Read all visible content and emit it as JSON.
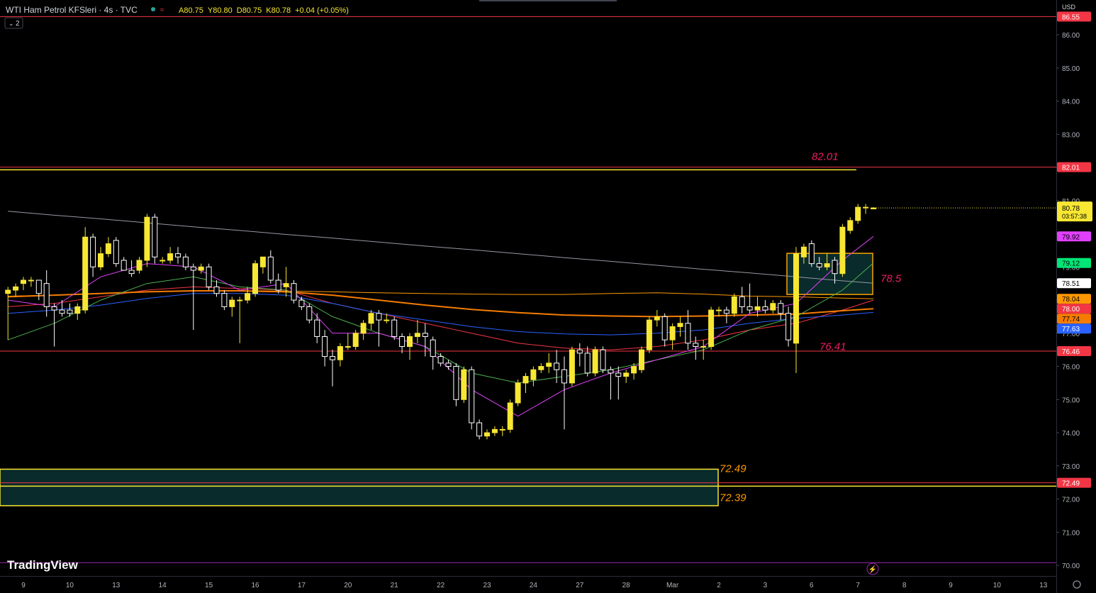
{
  "chart_data": {
    "type": "candlestick",
    "title": "WTI Ham Petrol KFSleri · 4s · TVC",
    "legend_values": [
      "A80.75",
      "Y80.80",
      "D80.75",
      "K80.78",
      "+0.04 (+0.05%)"
    ],
    "indicator_count": "2",
    "currency": "USD",
    "brand": "TradingView",
    "countdown": "03:57:38",
    "up_color": "#f7e733",
    "down_color": "#ffffff",
    "categories": [
      null,
      null,
      null,
      "9",
      null,
      null,
      null,
      null,
      null,
      "10",
      null,
      null,
      null,
      null,
      null,
      "13",
      null,
      null,
      null,
      null,
      null,
      "14",
      null,
      null,
      null,
      null,
      null,
      "15",
      null,
      null,
      null,
      null,
      null,
      "16",
      null,
      null,
      null,
      null,
      null,
      "17",
      null,
      null,
      null,
      null,
      null,
      "20",
      null,
      null,
      null,
      null,
      null,
      "21",
      null,
      null,
      null,
      null,
      null,
      "22",
      null,
      null,
      null,
      null,
      null,
      "23",
      null,
      null,
      null,
      null,
      null,
      "24",
      null,
      null,
      null,
      null,
      null,
      "27",
      null,
      null,
      null,
      null,
      null,
      "28",
      null,
      null,
      null,
      null,
      null,
      "Mar",
      null,
      null,
      null,
      null,
      null,
      "2",
      null,
      null,
      null,
      null,
      null,
      "3",
      null,
      null,
      null,
      null,
      null,
      "6",
      null,
      null,
      null,
      null,
      null,
      "7",
      null,
      null,
      null,
      null,
      null,
      "8",
      null,
      null,
      null,
      null,
      null,
      "9",
      null,
      null,
      null,
      null,
      null,
      "10",
      null,
      null,
      null,
      null,
      null,
      "13"
    ],
    "open": [
      null,
      78.2,
      78.3,
      78.5,
      78.6,
      78.6,
      78.5,
      77.8,
      77.7,
      77.7,
      77.6,
      77.7,
      79.9,
      79.0,
      79.4,
      79.8,
      79.2,
      78.9,
      78.9,
      79.2,
      80.5,
      79.2,
      79.2,
      79.4,
      79.3,
      79.0,
      78.9,
      79.0,
      78.4,
      78.2,
      77.8,
      78.0,
      78.0,
      78.2,
      79.0,
      79.3,
      78.6,
      78.4,
      78.5,
      78.0,
      77.8,
      77.4,
      76.9,
      76.3,
      76.2,
      76.6,
      76.6,
      77.0,
      77.3,
      77.6,
      77.4,
      77.4,
      76.9,
      76.6,
      76.9,
      77.0,
      76.8,
      76.3,
      76.1,
      76.0,
      75.0,
      75.9,
      74.3,
      73.9,
      74.0,
      74.1,
      74.1,
      74.9,
      75.5,
      75.6,
      75.9,
      76.0,
      76.1,
      75.9,
      75.5,
      76.5,
      76.4,
      75.8,
      76.5,
      75.9,
      75.8,
      75.7,
      75.8,
      75.9,
      76.5,
      77.4,
      77.5,
      76.8,
      77.2,
      77.3,
      76.7,
      76.6,
      76.6,
      77.7,
      77.7,
      77.6,
      78.1,
      77.8,
      77.7,
      77.8,
      77.7,
      77.9,
      77.6,
      76.7,
      79.3,
      79.7,
      79.1,
      79.0,
      79.2,
      78.8,
      80.1,
      80.4,
      80.8,
      80.75,
      null,
      null,
      null,
      null,
      null,
      null,
      null,
      null,
      null,
      null,
      null,
      null,
      null,
      null,
      null,
      null,
      null,
      null,
      null,
      null,
      null,
      null
    ],
    "high": [
      null,
      78.4,
      78.5,
      78.7,
      78.7,
      78.6,
      78.9,
      77.9,
      78.0,
      77.9,
      77.9,
      80.2,
      80.0,
      79.6,
      79.9,
      79.9,
      79.3,
      79.2,
      79.3,
      80.6,
      80.6,
      79.3,
      79.6,
      79.6,
      79.4,
      79.1,
      79.1,
      79.1,
      78.6,
      78.3,
      78.1,
      78.1,
      78.4,
      79.2,
      79.3,
      79.5,
      78.8,
      79.0,
      78.6,
      78.1,
      77.9,
      77.6,
      77.1,
      76.5,
      76.7,
      77.0,
      77.1,
      77.4,
      77.7,
      77.7,
      77.6,
      77.5,
      77.0,
      77.0,
      77.4,
      77.3,
      76.9,
      76.4,
      76.2,
      76.1,
      76.0,
      76.0,
      74.4,
      74.1,
      74.2,
      74.2,
      75.0,
      75.6,
      75.8,
      76.0,
      76.1,
      76.4,
      76.5,
      76.3,
      76.6,
      76.7,
      76.6,
      76.6,
      76.6,
      76.0,
      76.0,
      75.9,
      76.1,
      76.6,
      77.5,
      77.7,
      77.6,
      77.3,
      77.5,
      77.7,
      76.9,
      76.8,
      77.8,
      77.8,
      77.8,
      78.2,
      78.4,
      78.5,
      78.1,
      78.0,
      78.0,
      78.0,
      77.8,
      79.6,
      79.7,
      79.8,
      79.3,
      79.4,
      79.3,
      80.3,
      80.5,
      80.9,
      80.9,
      80.8,
      null,
      null,
      null,
      null,
      null,
      null,
      null,
      null,
      null,
      null,
      null,
      null,
      null,
      null,
      null,
      null,
      null,
      null,
      null,
      null,
      null,
      null
    ],
    "low": [
      null,
      76.8,
      78.1,
      78.3,
      78.4,
      78.0,
      77.5,
      76.6,
      77.5,
      77.5,
      77.4,
      77.6,
      78.7,
      78.9,
      79.3,
      79.0,
      78.9,
      78.7,
      78.8,
      79.0,
      79.1,
      79.1,
      79.1,
      79.1,
      78.9,
      77.1,
      78.8,
      78.3,
      78.1,
      77.7,
      77.5,
      76.7,
      77.9,
      78.1,
      78.8,
      78.5,
      78.2,
      78.1,
      77.9,
      77.7,
      77.3,
      76.7,
      76.0,
      75.4,
      76.0,
      76.5,
      76.5,
      76.8,
      77.1,
      76.6,
      77.3,
      76.8,
      76.4,
      76.2,
      76.7,
      76.3,
      75.9,
      76.0,
      75.9,
      74.8,
      74.9,
      74.1,
      73.8,
      73.8,
      73.9,
      73.9,
      74.0,
      74.8,
      75.2,
      75.4,
      75.8,
      75.8,
      75.5,
      74.1,
      75.4,
      76.0,
      75.7,
      75.7,
      75.8,
      75.0,
      75.0,
      75.5,
      75.6,
      75.8,
      76.4,
      77.2,
      76.6,
      76.5,
      76.9,
      76.5,
      76.2,
      76.2,
      76.5,
      77.5,
      77.3,
      77.5,
      77.6,
      77.6,
      77.5,
      77.6,
      77.6,
      77.4,
      76.6,
      75.8,
      79.1,
      79.0,
      78.9,
      78.9,
      78.5,
      78.7,
      80.0,
      80.3,
      80.6,
      80.75,
      null,
      null,
      null,
      null,
      null,
      null,
      null,
      null,
      null,
      null,
      null,
      null,
      null,
      null,
      null,
      null,
      null,
      null,
      null,
      null,
      null,
      null
    ],
    "close": [
      null,
      78.3,
      78.4,
      78.6,
      78.6,
      78.2,
      77.8,
      77.7,
      77.6,
      77.6,
      77.8,
      79.9,
      79.0,
      79.4,
      79.7,
      79.1,
      78.9,
      78.8,
      79.2,
      80.5,
      79.3,
      79.2,
      79.4,
      79.3,
      79.0,
      78.9,
      79.0,
      78.4,
      78.2,
      77.8,
      78.0,
      78.0,
      78.2,
      79.1,
      79.3,
      78.6,
      78.3,
      78.5,
      78.0,
      77.8,
      77.4,
      76.9,
      76.3,
      76.2,
      76.6,
      76.6,
      77.0,
      77.3,
      77.6,
      77.4,
      77.4,
      76.9,
      76.6,
      76.9,
      77.0,
      76.9,
      76.3,
      76.1,
      76.0,
      75.0,
      75.9,
      74.3,
      73.9,
      74.0,
      74.1,
      74.1,
      74.9,
      75.5,
      75.7,
      75.9,
      76.0,
      76.1,
      75.9,
      75.5,
      76.5,
      76.4,
      75.8,
      76.5,
      75.9,
      75.8,
      75.7,
      75.8,
      76.0,
      76.5,
      77.4,
      77.5,
      76.8,
      77.2,
      77.3,
      76.7,
      76.6,
      76.6,
      77.7,
      77.7,
      77.6,
      78.1,
      77.8,
      77.7,
      77.8,
      77.7,
      77.9,
      77.6,
      76.8,
      79.4,
      79.6,
      79.1,
      79.0,
      79.1,
      78.8,
      80.2,
      80.4,
      80.8,
      80.8,
      80.78,
      null,
      null,
      null,
      null,
      null,
      null,
      null,
      null,
      null,
      null,
      null,
      null,
      null,
      null,
      null,
      null,
      null,
      null,
      null,
      null,
      null,
      null
    ],
    "ylim": [
      69.68,
      87.05
    ],
    "yticks": [
      {
        "value": 70,
        "label": "70.00"
      },
      {
        "value": 71,
        "label": "71.00"
      },
      {
        "value": 72,
        "label": "72.00"
      },
      {
        "value": 73,
        "label": "73.00"
      },
      {
        "value": 74,
        "label": "74.00"
      },
      {
        "value": 75,
        "label": "75.00"
      },
      {
        "value": 76,
        "label": "76.00"
      },
      {
        "value": 77,
        "label": "77.00"
      },
      {
        "value": 78,
        "label": "78.00"
      },
      {
        "value": 79,
        "label": "79.00"
      },
      {
        "value": 80,
        "label": "80.00"
      },
      {
        "value": 81,
        "label": "81.00"
      },
      {
        "value": 82,
        "label": "82.00"
      },
      {
        "value": 83,
        "label": "83.00"
      },
      {
        "value": 84,
        "label": "84.00"
      },
      {
        "value": 85,
        "label": "85.00"
      },
      {
        "value": 86,
        "label": "86.00"
      }
    ],
    "indicators": [
      {
        "color": "#9598a1",
        "width": 1,
        "pill_bg": "#ffffff",
        "pill_fg": "#000000",
        "x": [
          1,
          7,
          13,
          19,
          25,
          31,
          37,
          43,
          49,
          55,
          61,
          67,
          73,
          79,
          85,
          91,
          97,
          103,
          109,
          113
        ],
        "values": [
          80.68,
          80.56,
          80.45,
          80.33,
          80.21,
          80.1,
          79.98,
          79.87,
          79.75,
          79.63,
          79.52,
          79.4,
          79.28,
          79.17,
          79.05,
          78.93,
          78.82,
          78.7,
          78.58,
          78.51
        ]
      },
      {
        "color": "#ff9800",
        "width": 1,
        "pill_bg": "#ff9800",
        "pill_fg": "#000000",
        "x": [
          1,
          7,
          13,
          19,
          25,
          31,
          37,
          43,
          49,
          55,
          61,
          67,
          73,
          79,
          85,
          91,
          97,
          103,
          109,
          113
        ],
        "values": [
          78.12,
          78.15,
          78.2,
          78.25,
          78.28,
          78.28,
          78.27,
          78.25,
          78.22,
          78.2,
          78.18,
          78.17,
          78.17,
          78.2,
          78.22,
          78.18,
          78.12,
          78.1,
          78.06,
          78.04
        ]
      },
      {
        "color": "#f23645",
        "width": 1,
        "pill_bg": "#f23645",
        "pill_fg": "#ffffff",
        "last_label": "78.00",
        "x": [
          1,
          7,
          13,
          19,
          25,
          31,
          37,
          43,
          49,
          55,
          61,
          67,
          73,
          79,
          85,
          91,
          97,
          103,
          109,
          113
        ],
        "values": [
          77.8,
          77.9,
          78.1,
          78.3,
          78.4,
          78.35,
          78.3,
          77.9,
          77.6,
          77.3,
          77.0,
          76.7,
          76.55,
          76.5,
          76.6,
          76.8,
          77.1,
          77.3,
          77.7,
          78.0
        ]
      },
      {
        "color": "#f57c00",
        "width": 2,
        "pill_bg": "#f57c00",
        "pill_fg": "#000000",
        "x": [
          1,
          7,
          13,
          19,
          25,
          31,
          37,
          43,
          49,
          55,
          61,
          67,
          73,
          79,
          85,
          91,
          97,
          103,
          109,
          113
        ],
        "values": [
          78.1,
          78.15,
          78.2,
          78.25,
          78.28,
          78.28,
          78.25,
          78.15,
          78.0,
          77.85,
          77.72,
          77.62,
          77.55,
          77.52,
          77.5,
          77.52,
          77.55,
          77.58,
          77.68,
          77.74
        ]
      },
      {
        "color": "#2962ff",
        "width": 1,
        "pill_bg": "#2962ff",
        "pill_fg": "#ffffff",
        "x": [
          1,
          7,
          13,
          19,
          25,
          31,
          37,
          43,
          49,
          55,
          61,
          67,
          73,
          79,
          85,
          91,
          97,
          103,
          109,
          113
        ],
        "values": [
          77.6,
          77.7,
          77.85,
          78.05,
          78.2,
          78.2,
          78.15,
          77.9,
          77.6,
          77.4,
          77.2,
          77.05,
          76.98,
          76.95,
          77.0,
          77.1,
          77.3,
          77.45,
          77.55,
          77.63
        ]
      },
      {
        "color": "#4caf50",
        "width": 1,
        "pill_bg": "#00e676",
        "pill_fg": "#000000",
        "x": [
          1,
          7,
          13,
          19,
          25,
          31,
          37,
          43,
          49,
          55,
          61,
          67,
          73,
          79,
          85,
          91,
          97,
          103,
          109,
          113
        ],
        "values": [
          76.8,
          77.3,
          78.0,
          78.5,
          78.7,
          78.4,
          78.3,
          77.5,
          77.0,
          76.6,
          75.8,
          75.5,
          75.7,
          75.9,
          76.2,
          76.5,
          77.1,
          77.5,
          78.3,
          79.12
        ]
      },
      {
        "color": "#e040fb",
        "width": 1,
        "pill_bg": "#e040fb",
        "pill_fg": "#000000",
        "x": [
          1,
          7,
          13,
          19,
          25,
          31,
          37,
          43,
          49,
          55,
          61,
          67,
          73,
          79,
          85,
          91,
          97,
          103,
          109,
          113
        ],
        "values": [
          78.0,
          77.8,
          78.7,
          79.1,
          79.0,
          78.3,
          78.5,
          77.0,
          77.0,
          76.6,
          75.3,
          74.5,
          75.3,
          75.8,
          76.2,
          76.6,
          77.6,
          77.9,
          79.2,
          79.92
        ]
      }
    ],
    "levels": [
      {
        "value": 86.55,
        "color": "#f23645",
        "axis_label": true
      },
      {
        "value": 82.01,
        "color": "#f23645",
        "axis_label": true
      },
      {
        "value": 81.93,
        "color": "#f7e733",
        "axis_label": false
      },
      {
        "value": 76.46,
        "color": "#f23645",
        "axis_label": true
      },
      {
        "value": 72.49,
        "color": "#f23645",
        "axis_label": true
      },
      {
        "value": 72.39,
        "color": "#f7e733",
        "axis_label": false
      },
      {
        "value": 70.08,
        "color": "#9c27b0",
        "axis_label": false
      }
    ],
    "zones": [
      {
        "range": [
          71.8,
          72.9
        ],
        "color": "#f7e733"
      },
      {
        "range": [
          78.17,
          79.41
        ],
        "color": "#f7a600"
      }
    ],
    "annotations": [
      {
        "value": 82.01,
        "color": "#e91e63"
      },
      {
        "value": 78.5,
        "color": "#e91e63"
      },
      {
        "value": 76.41,
        "color": "#e91e63"
      },
      {
        "value": 72.49,
        "color": "#ff9800"
      },
      {
        "value": 72.39,
        "color": "#ff9800"
      }
    ]
  }
}
